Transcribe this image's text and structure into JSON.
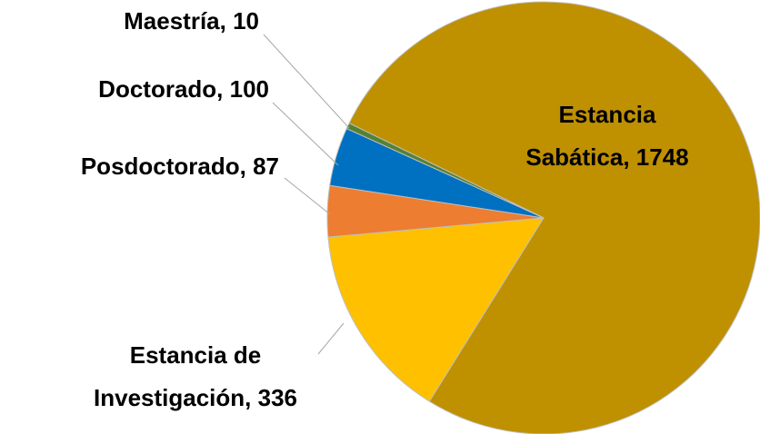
{
  "chart_data": {
    "type": "pie",
    "categories": [
      "Estancia Sabática",
      "Estancia de Investigación",
      "Posdoctorado",
      "Doctorado",
      "Maestría"
    ],
    "values": [
      1748,
      336,
      87,
      100,
      10
    ],
    "value_labels": [
      [
        "Estancia",
        "Sabática, 1748"
      ],
      [
        "Estancia de",
        "Investigación, 336"
      ],
      [
        "Posdoctorado, 87"
      ],
      [
        "Doctorado, 100"
      ],
      [
        "Maestría, 10"
      ]
    ],
    "colors": [
      "#bf9000",
      "#ffc000",
      "#ed7d31",
      "#0070c0",
      "#548235"
    ]
  }
}
